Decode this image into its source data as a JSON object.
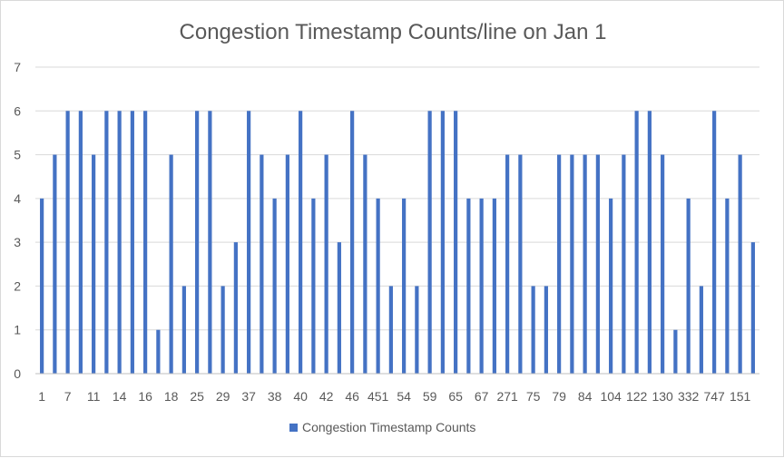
{
  "chart_data": {
    "type": "bar",
    "title": "Congestion Timestamp Counts/line on Jan 1",
    "xlabel": "",
    "ylabel": "",
    "ylim": [
      0,
      7
    ],
    "yticks": [
      0,
      1,
      2,
      3,
      4,
      5,
      6,
      7
    ],
    "grid": true,
    "legend_position": "bottom",
    "bar_color": "#4472c4",
    "categories": [
      "1",
      "",
      "7",
      "",
      "11",
      "",
      "14",
      "",
      "16",
      "",
      "18",
      "",
      "25",
      "",
      "29",
      "",
      "37",
      "",
      "38",
      "",
      "40",
      "",
      "42",
      "",
      "46",
      "",
      "451",
      "",
      "54",
      "",
      "59",
      "",
      "65",
      "",
      "67",
      "",
      "271",
      "",
      "75",
      "",
      "79",
      "",
      "84",
      "",
      "104",
      "",
      "122",
      "",
      "130",
      "",
      "332",
      "",
      "747",
      "",
      "151",
      ""
    ],
    "series": [
      {
        "name": "Congestion Timestamp Counts",
        "values": [
          4,
          5,
          6,
          6,
          5,
          6,
          6,
          6,
          6,
          1,
          5,
          2,
          6,
          6,
          2,
          3,
          6,
          5,
          4,
          5,
          6,
          4,
          5,
          3,
          6,
          5,
          4,
          2,
          4,
          2,
          6,
          6,
          6,
          4,
          4,
          4,
          5,
          5,
          2,
          2,
          5,
          5,
          5,
          5,
          4,
          5,
          6,
          6,
          5,
          1,
          4,
          2,
          6,
          4,
          5,
          3
        ]
      }
    ]
  }
}
